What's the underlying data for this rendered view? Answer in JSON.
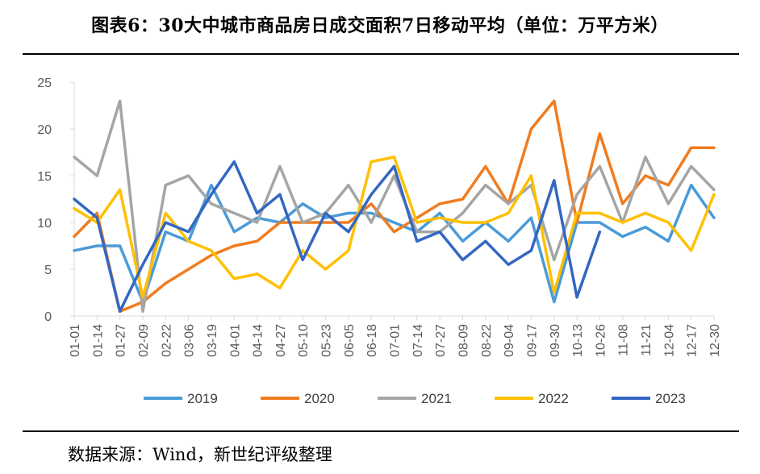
{
  "title": "图表6：30大中城市商品房日成交面积7日移动平均（单位：万平方米）",
  "source": "数据来源：Wind，新世纪评级整理",
  "chart_data": {
    "type": "line",
    "title": "图表6：30大中城市商品房日成交面积7日移动平均（单位：万平方米）",
    "xlabel": "",
    "ylabel": "",
    "ylim": [
      0,
      25
    ],
    "yticks": [
      0,
      5,
      10,
      15,
      20,
      25
    ],
    "grid": false,
    "legend_position": "bottom",
    "x_range": [
      "01-01",
      "12-30"
    ],
    "x_tick_labels": [
      "01-01",
      "01-14",
      "01-27",
      "02-09",
      "02-22",
      "03-06",
      "03-19",
      "04-01",
      "04-14",
      "04-27",
      "05-10",
      "05-23",
      "06-05",
      "06-18",
      "07-01",
      "07-14",
      "07-27",
      "08-09",
      "08-22",
      "09-04",
      "09-17",
      "09-30",
      "10-13",
      "10-26",
      "11-08",
      "11-21",
      "12-04",
      "12-17",
      "12-30"
    ],
    "x": [
      "01-01",
      "01-14",
      "01-27",
      "02-09",
      "02-22",
      "03-06",
      "03-19",
      "04-01",
      "04-14",
      "04-27",
      "05-10",
      "05-23",
      "06-05",
      "06-18",
      "07-01",
      "07-14",
      "07-27",
      "08-09",
      "08-22",
      "09-04",
      "09-17",
      "09-30",
      "10-13",
      "10-26",
      "11-08",
      "11-21",
      "12-04",
      "12-17",
      "12-30"
    ],
    "series": [
      {
        "name": "2019",
        "color": "#4A9BD8",
        "values": [
          7,
          7.5,
          7.5,
          1.5,
          9,
          8,
          14,
          9,
          10.5,
          10,
          12,
          10.5,
          11,
          11,
          10,
          9,
          11,
          8,
          10,
          8,
          10.5,
          1.5,
          10,
          10,
          8.5,
          9.5,
          8,
          14,
          10.5
        ]
      },
      {
        "name": "2020",
        "color": "#F07C20",
        "values": [
          8.5,
          11,
          0.5,
          1.5,
          3.5,
          5,
          6.5,
          7.5,
          8,
          10,
          10,
          10,
          10,
          12,
          9,
          10.5,
          12,
          12.5,
          16,
          12,
          20,
          23,
          10,
          19.5,
          12,
          15,
          14,
          18,
          18
        ]
      },
      {
        "name": "2021",
        "color": "#A5A5A5",
        "values": [
          17,
          15,
          23,
          0.5,
          14,
          15,
          12,
          11,
          10,
          16,
          10,
          11,
          14,
          10,
          15,
          9,
          9,
          11,
          14,
          12,
          14,
          6,
          13,
          16,
          10,
          17,
          12,
          16,
          13.5
        ]
      },
      {
        "name": "2022",
        "color": "#FFC000",
        "values": [
          11.5,
          10,
          13.5,
          2,
          11,
          8,
          7,
          4,
          4.5,
          3,
          7,
          5,
          7,
          16.5,
          17,
          10,
          10.5,
          10,
          10,
          11,
          15,
          2.5,
          11,
          11,
          10,
          11,
          10,
          7,
          13
        ]
      },
      {
        "name": "2023",
        "color": "#3467C2",
        "values": [
          12.5,
          10.5,
          0.5,
          5.5,
          10,
          9,
          13,
          16.5,
          11,
          13,
          6,
          11,
          9,
          13,
          16,
          8,
          9,
          6,
          8,
          5.5,
          7,
          14.5,
          2,
          9,
          null,
          null,
          null,
          null,
          null
        ]
      }
    ]
  }
}
